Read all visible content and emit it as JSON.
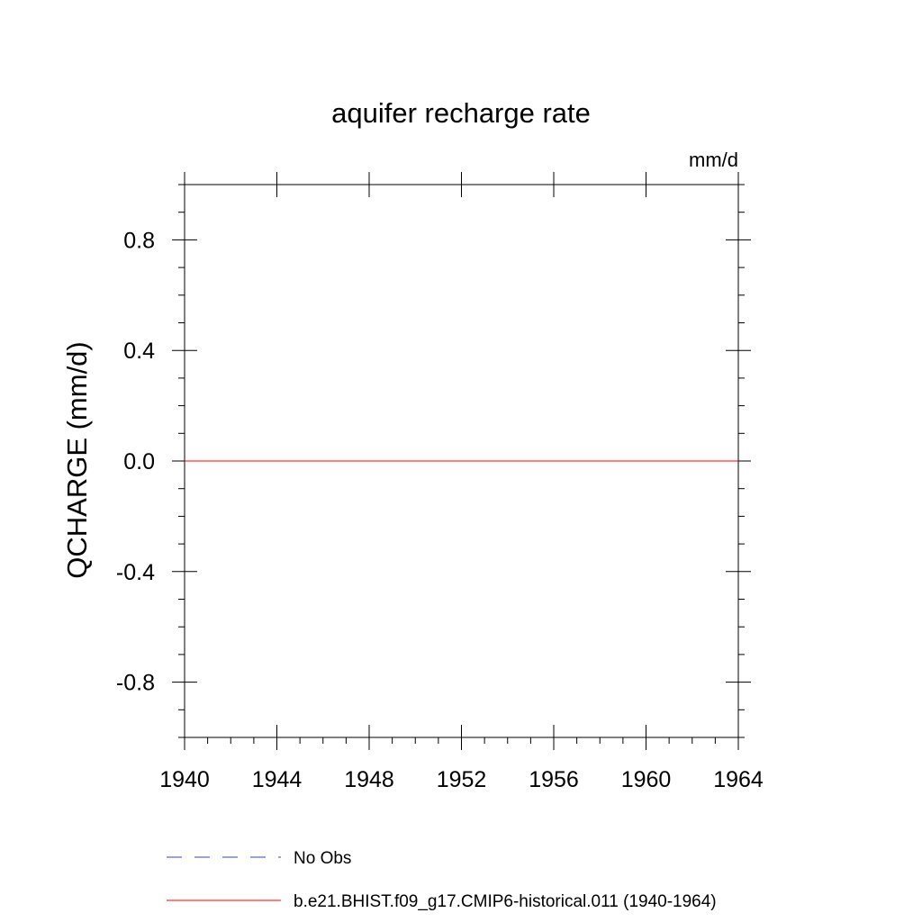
{
  "chart_data": {
    "type": "line",
    "title": "aquifer recharge rate",
    "units": "mm/d",
    "ylabel": "QCHARGE  (mm/d)",
    "xlabel": "",
    "xlim": [
      1940,
      1964
    ],
    "ylim": [
      -1.0,
      1.0
    ],
    "x_ticks": [
      1940,
      1944,
      1948,
      1952,
      1956,
      1960,
      1964
    ],
    "x_tick_labels": [
      "1940",
      "1944",
      "1948",
      "1952",
      "1956",
      "1960",
      "1964"
    ],
    "y_ticks": [
      -0.8,
      -0.4,
      0.0,
      0.4,
      0.8
    ],
    "y_tick_labels": [
      "-0.8",
      "-0.4",
      "0.0",
      "0.4",
      "0.8"
    ],
    "grid": false,
    "legend_position": "bottom",
    "series": [
      {
        "name": "b.e21.BHIST.f09_g17.CMIP6-historical.011 (1940-1964)",
        "color": "#ff0000",
        "dash": "solid",
        "x": [
          1940,
          1964
        ],
        "y": [
          0.0,
          0.0
        ]
      }
    ],
    "legend": [
      {
        "label": "No Obs",
        "color": "#3c3cc8",
        "dash": "dashed"
      },
      {
        "label": "b.e21.BHIST.f09_g17.CMIP6-historical.011 (1940-1964)",
        "color": "#ff0000",
        "dash": "solid"
      }
    ]
  }
}
